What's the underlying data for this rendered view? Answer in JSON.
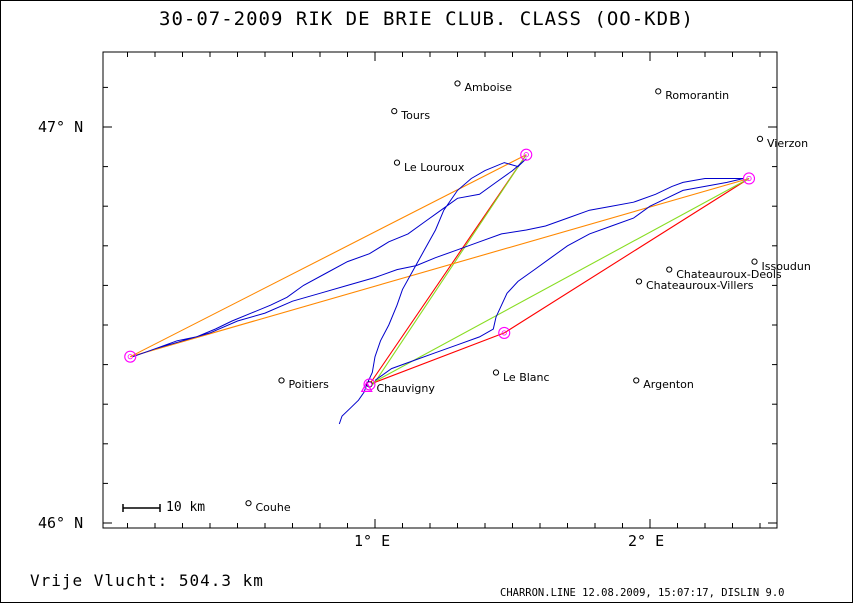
{
  "title": "30-07-2009   RIK DE BRIE   CLUB. CLASS (OO-KDB)",
  "footer": {
    "distance_text": "Vrije Vlucht:  504.3 km",
    "credit": "CHARRON.LINE 12.08.2009, 15:07:17, DISLIN 9.0"
  },
  "axes": {
    "lon_range": [
      0.0,
      2.45
    ],
    "lat_range": [
      46.0,
      47.2
    ],
    "lat_labels": [
      {
        "value": 47.0,
        "text": "47° N"
      },
      {
        "value": 46.0,
        "text": "46° N"
      }
    ],
    "lon_labels": [
      {
        "value": 1.0,
        "text": "1° E"
      },
      {
        "value": 2.0,
        "text": "2° E"
      }
    ]
  },
  "scale_bar": {
    "label": "10 km",
    "km": 10
  },
  "towns": [
    {
      "name": "Amboise",
      "lon": 1.3,
      "lat": 47.11
    },
    {
      "name": "Romorantin",
      "lon": 2.03,
      "lat": 47.09
    },
    {
      "name": "Tours",
      "lon": 1.07,
      "lat": 47.04
    },
    {
      "name": "Vierzon",
      "lon": 2.4,
      "lat": 46.97
    },
    {
      "name": "Le Louroux",
      "lon": 1.08,
      "lat": 46.91
    },
    {
      "name": "Issoudun",
      "lon": 2.38,
      "lat": 46.66
    },
    {
      "name": "Chateauroux-Deols",
      "lon": 2.07,
      "lat": 46.64
    },
    {
      "name": "Chateauroux-Villers",
      "lon": 1.96,
      "lat": 46.61
    },
    {
      "name": "Poitiers",
      "lon": 0.66,
      "lat": 46.36
    },
    {
      "name": "Le Blanc",
      "lon": 1.44,
      "lat": 46.38
    },
    {
      "name": "Chauvigny",
      "lon": 0.98,
      "lat": 46.35
    },
    {
      "name": "Argenton",
      "lon": 1.95,
      "lat": 46.36
    },
    {
      "name": "Couhe",
      "lon": 0.54,
      "lat": 46.05
    }
  ],
  "turnpoints": [
    {
      "lon": 0.11,
      "lat": 46.42
    },
    {
      "lon": 1.55,
      "lat": 46.93
    },
    {
      "lon": 2.36,
      "lat": 46.87
    },
    {
      "lon": 1.47,
      "lat": 46.48
    },
    {
      "lon": 0.98,
      "lat": 46.35
    }
  ],
  "start": {
    "lon": 0.97,
    "lat": 46.34
  },
  "colors": {
    "track": "#0000cc",
    "task_red": "#ff0000",
    "task_green": "#88dd22",
    "task_orange": "#ff8800",
    "turnpoint": "#ff00ff"
  },
  "track": [
    [
      0.87,
      46.25
    ],
    [
      0.88,
      46.27
    ],
    [
      0.91,
      46.29
    ],
    [
      0.94,
      46.31
    ],
    [
      0.96,
      46.33
    ],
    [
      0.97,
      46.35
    ],
    [
      0.99,
      46.38
    ],
    [
      1.0,
      46.42
    ],
    [
      1.02,
      46.46
    ],
    [
      1.05,
      46.5
    ],
    [
      1.08,
      46.55
    ],
    [
      1.1,
      46.59
    ],
    [
      1.14,
      46.64
    ],
    [
      1.18,
      46.69
    ],
    [
      1.22,
      46.74
    ],
    [
      1.25,
      46.79
    ],
    [
      1.3,
      46.84
    ],
    [
      1.35,
      46.87
    ],
    [
      1.4,
      46.89
    ],
    [
      1.47,
      46.91
    ],
    [
      1.52,
      46.9
    ],
    [
      1.55,
      46.92
    ],
    [
      1.5,
      46.89
    ],
    [
      1.44,
      46.86
    ],
    [
      1.38,
      46.83
    ],
    [
      1.3,
      46.82
    ],
    [
      1.24,
      46.79
    ],
    [
      1.18,
      46.76
    ],
    [
      1.12,
      46.73
    ],
    [
      1.05,
      46.71
    ],
    [
      0.98,
      46.68
    ],
    [
      0.9,
      46.66
    ],
    [
      0.82,
      46.63
    ],
    [
      0.74,
      46.6
    ],
    [
      0.68,
      46.57
    ],
    [
      0.62,
      46.55
    ],
    [
      0.55,
      46.53
    ],
    [
      0.48,
      46.51
    ],
    [
      0.42,
      46.49
    ],
    [
      0.35,
      46.47
    ],
    [
      0.28,
      46.46
    ],
    [
      0.2,
      46.44
    ],
    [
      0.12,
      46.42
    ],
    [
      0.2,
      46.44
    ],
    [
      0.3,
      46.46
    ],
    [
      0.4,
      46.48
    ],
    [
      0.5,
      46.51
    ],
    [
      0.6,
      46.53
    ],
    [
      0.7,
      46.56
    ],
    [
      0.8,
      46.58
    ],
    [
      0.9,
      46.6
    ],
    [
      1.0,
      46.62
    ],
    [
      1.08,
      46.64
    ],
    [
      1.15,
      46.65
    ],
    [
      1.22,
      46.67
    ],
    [
      1.3,
      46.69
    ],
    [
      1.38,
      46.71
    ],
    [
      1.46,
      46.73
    ],
    [
      1.55,
      46.74
    ],
    [
      1.62,
      46.75
    ],
    [
      1.7,
      46.77
    ],
    [
      1.78,
      46.79
    ],
    [
      1.86,
      46.8
    ],
    [
      1.94,
      46.81
    ],
    [
      2.02,
      46.83
    ],
    [
      2.08,
      46.85
    ],
    [
      2.12,
      46.86
    ],
    [
      2.2,
      46.87
    ],
    [
      2.28,
      46.87
    ],
    [
      2.34,
      46.87
    ],
    [
      2.28,
      46.86
    ],
    [
      2.2,
      46.85
    ],
    [
      2.12,
      46.84
    ],
    [
      2.06,
      46.82
    ],
    [
      2.0,
      46.8
    ],
    [
      1.94,
      46.77
    ],
    [
      1.86,
      46.75
    ],
    [
      1.78,
      46.73
    ],
    [
      1.7,
      46.7
    ],
    [
      1.64,
      46.67
    ],
    [
      1.58,
      46.64
    ],
    [
      1.52,
      46.61
    ],
    [
      1.48,
      46.58
    ],
    [
      1.46,
      46.55
    ],
    [
      1.44,
      46.52
    ],
    [
      1.43,
      46.49
    ],
    [
      1.38,
      46.47
    ],
    [
      1.3,
      46.45
    ],
    [
      1.22,
      46.43
    ],
    [
      1.14,
      46.41
    ],
    [
      1.06,
      46.39
    ],
    [
      1.0,
      46.36
    ]
  ]
}
